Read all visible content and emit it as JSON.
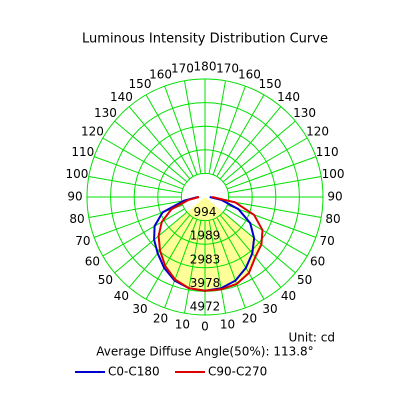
{
  "chart_data": {
    "type": "polar",
    "title": "Luminous Intensity Distribution Curve",
    "unit_label": "Unit: cd",
    "note": "Average Diffuse Angle(50%): 113.8°",
    "angle_ticks": [
      0,
      10,
      20,
      30,
      40,
      50,
      60,
      70,
      80,
      90,
      100,
      110,
      120,
      130,
      140,
      150,
      160,
      170,
      180
    ],
    "rlim": [
      0,
      4972
    ],
    "rticks": [
      994,
      1989,
      2983,
      3978,
      4972
    ],
    "grid": true,
    "x": [
      -90,
      -80,
      -70,
      -60,
      -50,
      -40,
      -30,
      -20,
      -10,
      0,
      10,
      20,
      30,
      40,
      50,
      60,
      70,
      80,
      90
    ],
    "series": [
      {
        "name": "C0-C180",
        "color": "#0000cc",
        "values": [
          300,
          900,
          1900,
          2450,
          2800,
          3100,
          3450,
          3750,
          3900,
          3950,
          3900,
          3750,
          3450,
          3100,
          2700,
          2200,
          1500,
          700,
          200
        ]
      },
      {
        "name": "C90-C270",
        "color": "#dd0000",
        "values": [
          250,
          700,
          1500,
          2100,
          2550,
          2950,
          3350,
          3700,
          3900,
          3950,
          3950,
          3900,
          3700,
          3300,
          3100,
          2800,
          2200,
          1300,
          300
        ]
      }
    ]
  }
}
